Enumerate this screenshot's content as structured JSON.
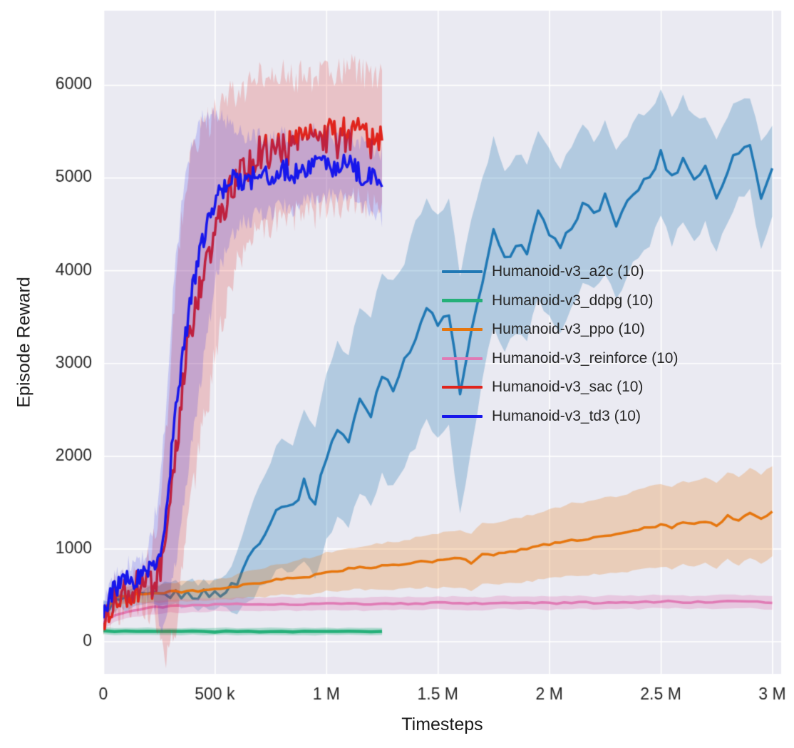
{
  "chart_data": {
    "type": "line",
    "title": "",
    "xlabel": "Timesteps",
    "ylabel": "Episode Reward",
    "xlim": [
      0,
      3040000
    ],
    "ylim": [
      -350,
      6800
    ],
    "x_unit": 1000,
    "grid": true,
    "plot_bg": "#eaeaf2",
    "grid_color": "#ffffff",
    "tick_color": "#262626",
    "xticks": {
      "values": [
        0,
        500000,
        1000000,
        1500000,
        2000000,
        2500000,
        3000000
      ],
      "labels": [
        "0",
        "500 k",
        "1 M",
        "1.5 M",
        "2 M",
        "2.5 M",
        "3 M"
      ]
    },
    "yticks": {
      "values": [
        0,
        1000,
        2000,
        3000,
        4000,
        5000,
        6000
      ],
      "labels": [
        "0",
        "1000",
        "2000",
        "3000",
        "4000",
        "5000",
        "6000"
      ]
    },
    "layout": {
      "margins": {
        "l": 145,
        "r": 18,
        "t": 15,
        "b": 104
      },
      "legend": {
        "left": 620,
        "top": 361,
        "row_height": 40.5,
        "swatch_width": 57
      }
    },
    "series": [
      {
        "id": "a2c",
        "name": "Humanoid-v3_a2c (10)",
        "color": "#2078b4",
        "lw": 3.5,
        "band_alpha": 0.28,
        "jitter": 55,
        "sample_step": 25,
        "x": [
          0,
          50,
          100,
          150,
          200,
          250,
          300,
          350,
          400,
          450,
          500,
          550,
          600,
          650,
          700,
          750,
          800,
          850,
          900,
          950,
          1000,
          1050,
          1100,
          1150,
          1200,
          1250,
          1300,
          1350,
          1400,
          1450,
          1500,
          1550,
          1600,
          1650,
          1700,
          1750,
          1800,
          1850,
          1900,
          1950,
          2000,
          2050,
          2100,
          2150,
          2200,
          2250,
          2300,
          2350,
          2400,
          2450,
          2500,
          2550,
          2600,
          2650,
          2700,
          2750,
          2800,
          2850,
          2900,
          2950,
          3000
        ],
        "y": [
          350,
          420,
          450,
          470,
          480,
          490,
          500,
          505,
          500,
          510,
          515,
          540,
          640,
          900,
          1100,
          1300,
          1500,
          1450,
          1700,
          1500,
          2000,
          2300,
          2150,
          2600,
          2450,
          2900,
          2750,
          3000,
          3300,
          3600,
          3400,
          3550,
          2650,
          3300,
          3900,
          4400,
          4100,
          4300,
          4200,
          4600,
          4400,
          4200,
          4500,
          4700,
          4600,
          4800,
          4500,
          4700,
          4900,
          5000,
          5250,
          5000,
          5200,
          5000,
          5100,
          4800,
          5100,
          5300,
          5350,
          4800,
          5100
        ],
        "band": [
          80,
          90,
          100,
          100,
          110,
          110,
          120,
          120,
          130,
          140,
          150,
          200,
          300,
          450,
          550,
          650,
          700,
          700,
          800,
          800,
          900,
          950,
          950,
          1000,
          1000,
          1100,
          1100,
          1100,
          1200,
          1200,
          1200,
          1200,
          1300,
          1200,
          1100,
          1000,
          1000,
          950,
          950,
          900,
          900,
          900,
          850,
          850,
          800,
          800,
          800,
          750,
          750,
          700,
          700,
          700,
          650,
          650,
          600,
          600,
          550,
          550,
          500,
          600,
          500
        ]
      },
      {
        "id": "ddpg",
        "name": "Humanoid-v3_ddpg (10)",
        "color": "#25b079",
        "lw": 4.5,
        "band_alpha": 0.3,
        "jitter": 4,
        "sample_step": 40,
        "x": [
          0,
          50,
          100,
          150,
          200,
          250,
          300,
          350,
          400,
          450,
          500,
          550,
          600,
          650,
          700,
          750,
          800,
          850,
          900,
          950,
          1000,
          1050,
          1100,
          1150,
          1200,
          1250
        ],
        "y": [
          115,
          105,
          110,
          106,
          109,
          104,
          108,
          105,
          110,
          106,
          104,
          109,
          105,
          108,
          104,
          110,
          106,
          105,
          109,
          104,
          108,
          105,
          110,
          106,
          104,
          108
        ],
        "band": 38
      },
      {
        "id": "ppo",
        "name": "Humanoid-v3_ppo (10)",
        "color": "#e6760e",
        "lw": 3.5,
        "band_alpha": 0.25,
        "jitter": 14,
        "sample_step": 25,
        "x": [
          0,
          50,
          100,
          150,
          200,
          250,
          300,
          350,
          400,
          450,
          500,
          550,
          600,
          650,
          700,
          750,
          800,
          850,
          900,
          950,
          1000,
          1050,
          1100,
          1150,
          1200,
          1250,
          1300,
          1350,
          1400,
          1450,
          1500,
          1550,
          1600,
          1650,
          1700,
          1750,
          1800,
          1850,
          1900,
          1950,
          2000,
          2050,
          2100,
          2150,
          2200,
          2250,
          2300,
          2350,
          2400,
          2450,
          2500,
          2550,
          2600,
          2650,
          2700,
          2750,
          2800,
          2850,
          2900,
          2950,
          3000
        ],
        "y": [
          300,
          470,
          500,
          510,
          515,
          520,
          530,
          540,
          545,
          550,
          555,
          565,
          590,
          610,
          630,
          650,
          670,
          680,
          700,
          710,
          750,
          760,
          780,
          790,
          800,
          810,
          820,
          830,
          850,
          860,
          870,
          880,
          900,
          850,
          950,
          940,
          960,
          980,
          1000,
          1020,
          1050,
          1070,
          1100,
          1090,
          1120,
          1140,
          1150,
          1170,
          1200,
          1230,
          1250,
          1230,
          1280,
          1260,
          1300,
          1250,
          1350,
          1300,
          1380,
          1320,
          1400
        ],
        "band": [
          60,
          80,
          90,
          90,
          95,
          100,
          100,
          105,
          110,
          110,
          115,
          120,
          130,
          140,
          150,
          160,
          170,
          180,
          190,
          200,
          210,
          215,
          220,
          230,
          240,
          250,
          255,
          260,
          270,
          280,
          290,
          300,
          310,
          310,
          320,
          330,
          340,
          350,
          355,
          360,
          370,
          380,
          390,
          395,
          400,
          410,
          415,
          420,
          430,
          435,
          440,
          445,
          450,
          455,
          460,
          465,
          470,
          475,
          480,
          485,
          490
        ]
      },
      {
        "id": "reinforce",
        "name": "Humanoid-v3_reinforce (10)",
        "color": "#e07bb5",
        "lw": 3.5,
        "band_alpha": 0.3,
        "jitter": 9,
        "sample_step": 40,
        "x": [
          0,
          50,
          100,
          200,
          300,
          400,
          500,
          600,
          700,
          800,
          900,
          1000,
          1100,
          1200,
          1300,
          1400,
          1500,
          1600,
          1700,
          1800,
          1900,
          2000,
          2100,
          2200,
          2300,
          2400,
          2500,
          2600,
          2700,
          2800,
          2900,
          3000
        ],
        "y": [
          200,
          280,
          320,
          360,
          380,
          385,
          395,
          400,
          400,
          405,
          400,
          410,
          405,
          400,
          410,
          405,
          415,
          410,
          405,
          420,
          415,
          410,
          420,
          415,
          425,
          420,
          430,
          425,
          420,
          430,
          425,
          415
        ],
        "band": 70
      },
      {
        "id": "sac",
        "name": "Humanoid-v3_sac (10)",
        "color": "#e0241c",
        "lw": 3.5,
        "band_alpha": 0.2,
        "jitter": 200,
        "sample_step": 7,
        "x": [
          0,
          25,
          50,
          75,
          100,
          125,
          150,
          175,
          200,
          225,
          250,
          275,
          300,
          325,
          350,
          375,
          400,
          425,
          450,
          475,
          500,
          525,
          550,
          575,
          600,
          650,
          700,
          750,
          800,
          850,
          900,
          950,
          1000,
          1050,
          1100,
          1150,
          1200,
          1250
        ],
        "y": [
          200,
          400,
          480,
          510,
          540,
          555,
          570,
          590,
          620,
          660,
          720,
          900,
          1400,
          2000,
          2600,
          3100,
          3400,
          3700,
          4000,
          4100,
          4400,
          4600,
          4700,
          4900,
          5000,
          5100,
          5300,
          5250,
          5350,
          5300,
          5400,
          5350,
          5450,
          5400,
          5500,
          5450,
          5400,
          5400
        ],
        "band": [
          80,
          120,
          150,
          160,
          170,
          180,
          190,
          210,
          260,
          400,
          700,
          1100,
          1500,
          1800,
          1900,
          1900,
          1800,
          1700,
          1600,
          1500,
          1300,
          1200,
          1100,
          1000,
          900,
          850,
          800,
          780,
          760,
          750,
          740,
          730,
          720,
          710,
          700,
          700,
          700,
          700
        ]
      },
      {
        "id": "td3",
        "name": "Humanoid-v3_td3 (10)",
        "color": "#1717eb",
        "lw": 3.5,
        "band_alpha": 0.17,
        "jitter": 120,
        "sample_step": 7,
        "x": [
          0,
          25,
          50,
          75,
          100,
          125,
          150,
          175,
          200,
          225,
          250,
          275,
          300,
          325,
          350,
          375,
          400,
          425,
          450,
          475,
          500,
          525,
          550,
          575,
          600,
          650,
          700,
          750,
          800,
          850,
          900,
          950,
          1000,
          1050,
          1100,
          1150,
          1200,
          1250
        ],
        "y": [
          250,
          450,
          550,
          600,
          640,
          660,
          690,
          720,
          780,
          850,
          950,
          1250,
          1900,
          2500,
          3000,
          3400,
          3800,
          4100,
          4350,
          4550,
          4750,
          4850,
          4900,
          4950,
          5000,
          4950,
          5050,
          5000,
          5100,
          5050,
          5100,
          5150,
          5150,
          5100,
          5150,
          5050,
          5000,
          4900
        ],
        "band": [
          100,
          130,
          150,
          160,
          170,
          180,
          190,
          210,
          260,
          400,
          700,
          1100,
          1400,
          1600,
          1700,
          1700,
          1600,
          1500,
          1300,
          1100,
          900,
          800,
          700,
          600,
          500,
          450,
          420,
          400,
          380,
          370,
          360,
          350,
          350,
          340,
          340,
          330,
          330,
          330
        ]
      }
    ]
  }
}
